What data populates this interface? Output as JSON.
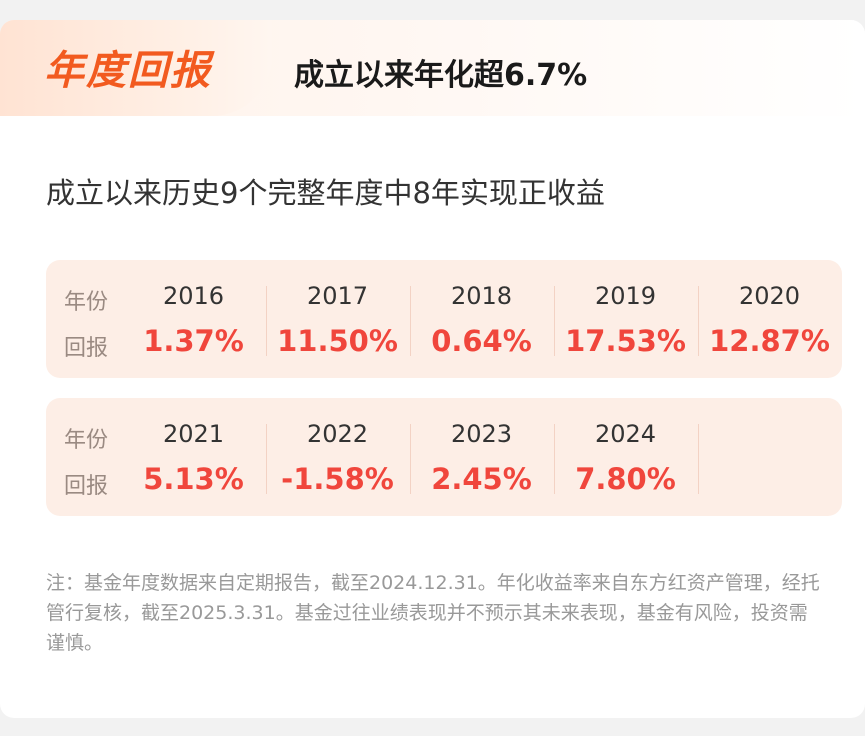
{
  "header": {
    "badge": "年度回报",
    "headline": "成立以来年化超6.7%"
  },
  "subtitle": "成立以来历史9个完整年度中8年实现正收益",
  "table": {
    "year_label": "年份",
    "return_label": "回报",
    "row1": [
      {
        "year": "2016",
        "return": "1.37%"
      },
      {
        "year": "2017",
        "return": "11.50%"
      },
      {
        "year": "2018",
        "return": "0.64%"
      },
      {
        "year": "2019",
        "return": "17.53%"
      },
      {
        "year": "2020",
        "return": "12.87%"
      }
    ],
    "row2": [
      {
        "year": "2021",
        "return": "5.13%"
      },
      {
        "year": "2022",
        "return": "-1.58%"
      },
      {
        "year": "2023",
        "return": "2.45%"
      },
      {
        "year": "2024",
        "return": "7.80%"
      }
    ]
  },
  "note": "注：基金年度数据来自定期报告，截至2024.12.31。年化收益率来自东方红资产管理，经托管行复核，截至2025.3.31。基金过往业绩表现并不预示其未来表现，基金有风险，投资需谨慎。",
  "colors": {
    "accent": "#f25a1f",
    "return_red": "#f0463c",
    "table_bg": "#fdeee6"
  }
}
